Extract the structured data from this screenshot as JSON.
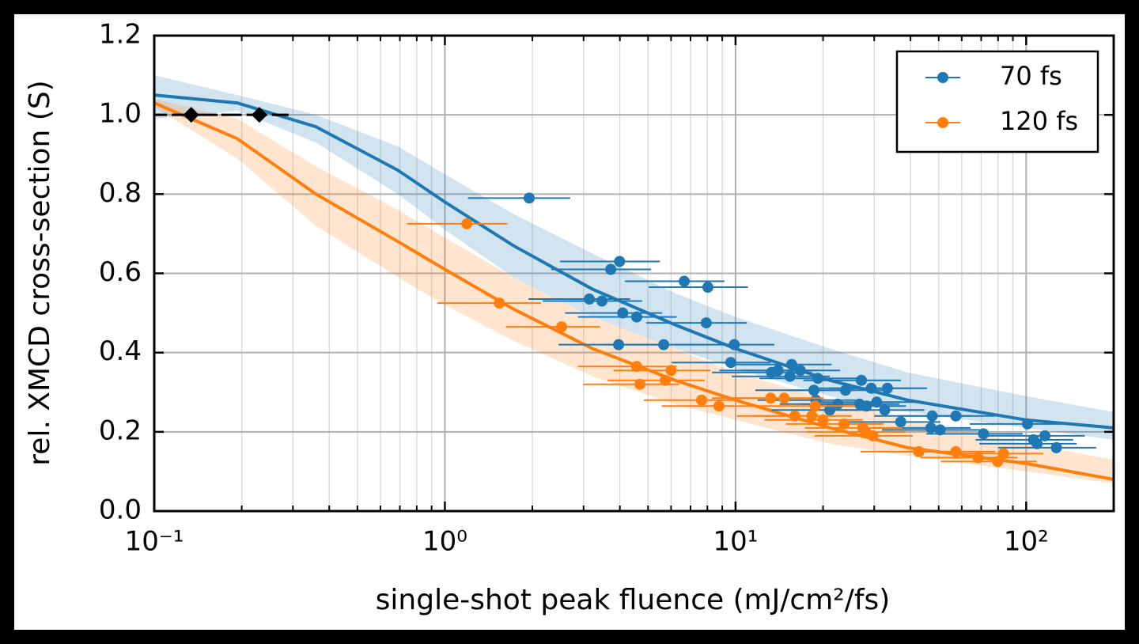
{
  "chart_data": {
    "type": "scatter",
    "xlabel": "single-shot peak fluence (mJ/cm²/fs)",
    "ylabel": "rel. XMCD cross-section (S)",
    "xscale": "log",
    "xlim": [
      0.1,
      200
    ],
    "ylim": [
      0,
      1.2
    ],
    "xticks": [
      {
        "value": 0.1,
        "label": "10⁻¹"
      },
      {
        "value": 1,
        "label": "10⁰"
      },
      {
        "value": 10,
        "label": "10¹"
      },
      {
        "value": 100,
        "label": "10²"
      }
    ],
    "xminorticks": [
      0.2,
      0.3,
      0.4,
      0.5,
      0.6,
      0.7,
      0.8,
      0.9,
      2,
      3,
      4,
      5,
      6,
      7,
      8,
      9,
      20,
      30,
      40,
      50,
      60,
      70,
      80,
      90,
      200
    ],
    "yticks": [
      {
        "value": 0,
        "label": "0.0"
      },
      0.2,
      0.4,
      0.6,
      0.8,
      {
        "value": 1,
        "label": "1.0"
      },
      1.2
    ],
    "grid": true,
    "legend": "upper right",
    "fit_x": [
      0.1,
      0.193,
      0.36,
      0.69,
      1,
      1.72,
      3.22,
      6.2,
      10,
      21.1,
      39.1,
      100,
      200
    ],
    "series": [
      {
        "name": "70 fs",
        "color": "#1f77b4",
        "x": [
          1.95,
          3.99,
          3.72,
          3.14,
          3.47,
          4.09,
          4.57,
          3.96,
          5.66,
          6.66,
          8.03,
          7.93,
          9.63,
          9.9,
          13.3,
          14.0,
          15.6,
          15.4,
          16.7,
          19.2,
          18.6,
          18.9,
          21.1,
          22.5,
          23.9,
          26.7,
          27.1,
          28.2,
          29.3,
          30.6,
          32.6,
          33.3,
          37.0,
          47.5,
          47.0,
          50.6,
          57.3,
          71.3,
          101,
          106,
          109,
          116,
          127
        ],
        "values": [
          0.79,
          0.63,
          0.61,
          0.535,
          0.53,
          0.5,
          0.49,
          0.42,
          0.42,
          0.58,
          0.565,
          0.475,
          0.375,
          0.42,
          0.35,
          0.355,
          0.37,
          0.34,
          0.355,
          0.335,
          0.305,
          0.28,
          0.255,
          0.27,
          0.305,
          0.27,
          0.33,
          0.265,
          0.31,
          0.275,
          0.255,
          0.31,
          0.225,
          0.24,
          0.21,
          0.205,
          0.24,
          0.195,
          0.22,
          0.18,
          0.17,
          0.19,
          0.16
        ],
        "xerr": [
          0.75,
          1.5,
          1.4,
          1.2,
          1.3,
          1.5,
          1.7,
          1.5,
          2.1,
          2.5,
          3,
          3,
          3.6,
          3.7,
          5,
          5.2,
          5.8,
          5.7,
          6.2,
          7.1,
          6.9,
          7,
          7.8,
          8.3,
          8.8,
          9.9,
          10,
          10.4,
          10.8,
          11.3,
          12,
          12.3,
          13.7,
          17.5,
          17.4,
          18.7,
          21,
          26,
          37,
          39,
          40,
          43,
          47
        ],
        "fit": {
          "values": [
            1.05,
            1.03,
            0.97,
            0.86,
            0.78,
            0.67,
            0.56,
            0.47,
            0.41,
            0.33,
            0.28,
            0.23,
            0.21
          ],
          "lower": [
            0.99,
            1.01,
            0.93,
            0.8,
            0.71,
            0.59,
            0.49,
            0.41,
            0.36,
            0.29,
            0.25,
            0.21,
            0.18
          ],
          "upper": [
            1.1,
            1.05,
            1.0,
            0.92,
            0.85,
            0.75,
            0.65,
            0.55,
            0.49,
            0.41,
            0.35,
            0.29,
            0.25
          ]
        }
      },
      {
        "name": "120 fs",
        "color": "#ff7f0e",
        "x": [
          1.19,
          1.54,
          2.52,
          4.57,
          4.69,
          5.73,
          6.0,
          7.64,
          8.77,
          13.2,
          14.7,
          16.0,
          18.3,
          18.8,
          20.0,
          23.6,
          27.4,
          28.0,
          29.7,
          42.7,
          57.3,
          68.3,
          79.8,
          83.5
        ],
        "values": [
          0.725,
          0.525,
          0.465,
          0.365,
          0.32,
          0.33,
          0.355,
          0.28,
          0.265,
          0.285,
          0.285,
          0.24,
          0.24,
          0.265,
          0.23,
          0.22,
          0.21,
          0.2,
          0.19,
          0.15,
          0.15,
          0.135,
          0.125,
          0.145
        ],
        "xerr": [
          0.45,
          0.6,
          0.9,
          1.7,
          1.7,
          2.1,
          2.2,
          2.8,
          3.2,
          4.9,
          5.4,
          5.9,
          6.8,
          7,
          7.4,
          8.7,
          10.1,
          10.4,
          11,
          15.8,
          21,
          25,
          29,
          31
        ],
        "fit": {
          "values": [
            1.03,
            0.94,
            0.8,
            0.68,
            0.61,
            0.51,
            0.41,
            0.33,
            0.28,
            0.21,
            0.16,
            0.12,
            0.08
          ],
          "lower": [
            1.02,
            0.89,
            0.72,
            0.59,
            0.52,
            0.43,
            0.34,
            0.27,
            0.23,
            0.17,
            0.14,
            0.1,
            0.07
          ],
          "upper": [
            1.04,
            0.99,
            0.87,
            0.76,
            0.69,
            0.59,
            0.49,
            0.41,
            0.35,
            0.28,
            0.23,
            0.17,
            0.13
          ]
        }
      }
    ],
    "reference": {
      "color": "#000000",
      "x": [
        0.134,
        0.23
      ],
      "values": [
        1,
        1
      ],
      "xerr": [
        0.04,
        0.06
      ]
    }
  }
}
